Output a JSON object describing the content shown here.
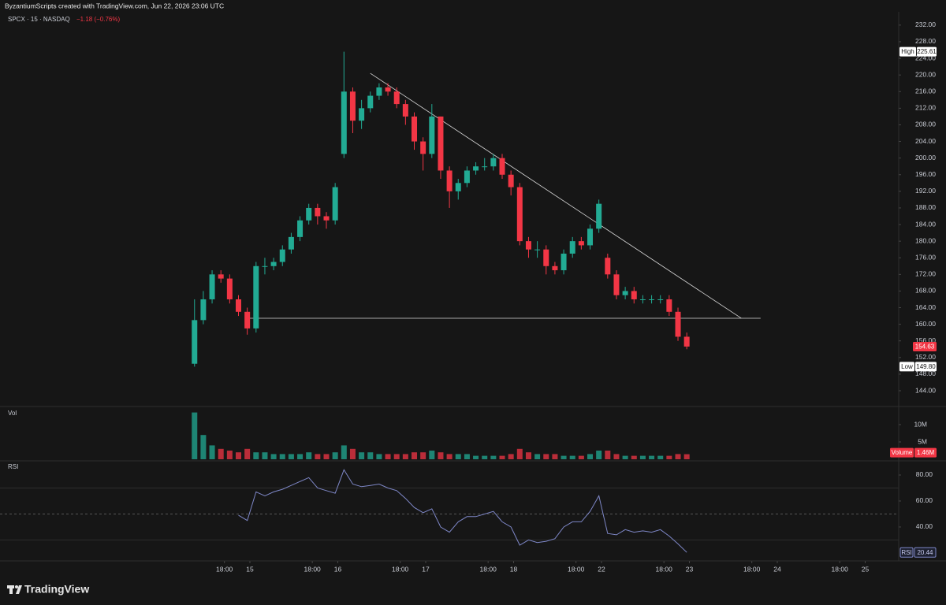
{
  "header": {
    "credit": "ByzantiumScripts created with TradingView.com, Jun 22, 2026 23:06 UTC",
    "symbol": "SPCX · 15 · NASDAQ",
    "change": "−1.18 (−0.76%)"
  },
  "footer": {
    "brand": "TradingView"
  },
  "chart_data": [
    {
      "type": "candlestick",
      "x": [
        14.37,
        14.47,
        14.57,
        14.67,
        14.77,
        14.87,
        14.97,
        15.07,
        15.17,
        15.27,
        15.37,
        15.47,
        15.57,
        15.67,
        15.77,
        15.87,
        15.97,
        16.07,
        16.17,
        16.27,
        16.37,
        16.47,
        16.57,
        16.67,
        16.77,
        16.87,
        16.97,
        17.07,
        17.17,
        17.27,
        17.37,
        17.47,
        17.57,
        17.67,
        17.77,
        17.87,
        17.97,
        18.07,
        18.17,
        18.27,
        18.37,
        18.47,
        18.57,
        18.67,
        18.77,
        18.87,
        18.97,
        19.07,
        19.17,
        19.27,
        19.37,
        19.47,
        19.57,
        19.67,
        19.77,
        19.87,
        19.97
      ],
      "open": [
        150.5,
        161,
        166,
        172,
        171,
        166,
        163,
        159,
        174,
        174,
        175,
        178,
        181,
        185,
        188,
        186,
        185,
        201,
        216,
        209,
        212,
        215,
        217,
        216,
        213,
        210,
        204,
        201,
        210,
        197,
        192,
        194,
        197,
        198,
        198,
        200,
        196,
        193,
        180,
        178,
        178,
        174,
        173,
        177,
        180,
        179,
        183,
        176,
        172,
        167,
        168,
        166,
        166,
        166,
        166,
        163,
        157
      ],
      "high": [
        166,
        168,
        173,
        173,
        172,
        167,
        164,
        175,
        176,
        176,
        179,
        182,
        186,
        189,
        189,
        187,
        194,
        225.61,
        217,
        214,
        216,
        218,
        218,
        217,
        214,
        211,
        205,
        213,
        210,
        198,
        195,
        198,
        199,
        200,
        201,
        201,
        197,
        194,
        181,
        180,
        179,
        175,
        178,
        181,
        181,
        184,
        190,
        177,
        173,
        169,
        169,
        167,
        167,
        167,
        167,
        164,
        158
      ],
      "low": [
        149.8,
        160,
        165,
        170,
        165,
        162,
        157.5,
        158,
        172,
        173,
        174,
        177,
        180,
        184,
        184,
        183,
        184,
        200,
        206,
        207,
        211,
        214,
        215,
        212,
        208,
        202,
        197,
        200,
        195,
        188,
        190,
        193,
        196,
        197,
        197,
        195,
        191,
        179,
        176,
        176,
        172,
        172,
        172,
        176,
        178,
        178,
        182,
        171,
        166,
        166,
        165,
        165,
        165,
        165,
        162,
        156,
        154
      ],
      "close": [
        161,
        166,
        172,
        171,
        166,
        163,
        159,
        174,
        174,
        175,
        178,
        181,
        185,
        188,
        186,
        185,
        193,
        216,
        209,
        212,
        215,
        217,
        216,
        213,
        210,
        204,
        201,
        210,
        197,
        192,
        194,
        197,
        198,
        198,
        200,
        196,
        193,
        180,
        178,
        178,
        174,
        173,
        177,
        180,
        179,
        183,
        189,
        172,
        167,
        168,
        166,
        166,
        166,
        166,
        163,
        157,
        154.63
      ],
      "up_color": "#22ab94",
      "down_color": "#f23645",
      "xlim": [
        12.157,
        22.381
      ],
      "xticks": [
        {
          "value": 14.71,
          "label": "18:00"
        },
        15,
        {
          "value": 15.71,
          "label": "18:00"
        },
        16,
        {
          "value": 16.71,
          "label": "18:00"
        },
        17,
        {
          "value": 17.71,
          "label": "18:00"
        },
        18,
        {
          "value": 18.71,
          "label": "18:00"
        },
        {
          "value": 19,
          "label": "22"
        },
        {
          "value": 19.71,
          "label": "18:00"
        },
        {
          "value": 20,
          "label": "23"
        },
        {
          "value": 20.71,
          "label": "18:00"
        },
        {
          "value": 21,
          "label": "24"
        },
        {
          "value": 21.71,
          "label": "18:00"
        },
        {
          "value": 22,
          "label": "25"
        }
      ],
      "ylim": [
        140.4,
        235.2
      ],
      "yticks": [
        {
          "value": 144,
          "label": "144.00"
        },
        {
          "value": 148,
          "label": "148.00"
        },
        {
          "value": 152,
          "label": "152.00"
        },
        {
          "value": 156,
          "label": "156.00"
        },
        {
          "value": 160,
          "label": "160.00"
        },
        {
          "value": 164,
          "label": "164.00"
        },
        {
          "value": 168,
          "label": "168.00"
        },
        {
          "value": 172,
          "label": "172.00"
        },
        {
          "value": 176,
          "label": "176.00"
        },
        {
          "value": 180,
          "label": "180.00"
        },
        {
          "value": 184,
          "label": "184.00"
        },
        {
          "value": 188,
          "label": "188.00"
        },
        {
          "value": 192,
          "label": "192.00"
        },
        {
          "value": 196,
          "label": "196.00"
        },
        {
          "value": 200,
          "label": "200.00"
        },
        {
          "value": 204,
          "label": "204.00"
        },
        {
          "value": 208,
          "label": "208.00"
        },
        {
          "value": 212,
          "label": "212.00"
        },
        {
          "value": 216,
          "label": "216.00"
        },
        {
          "value": 220,
          "label": "220.00"
        },
        {
          "value": 224,
          "label": "224.00"
        },
        {
          "value": 228,
          "label": "228.00"
        },
        {
          "value": 232,
          "label": "232.00"
        }
      ],
      "high_badge": {
        "label": "High",
        "value": 225.61
      },
      "low_badge": {
        "label": "Low",
        "value": 149.8,
        "value_label": "149.80"
      },
      "last": 154.63,
      "lines": [
        {
          "x": [
            14.97,
            20.81
          ],
          "y": [
            161.45,
            161.45
          ]
        },
        {
          "x": [
            16.37,
            20.59
          ],
          "y": [
            220.4,
            161.45
          ]
        }
      ]
    },
    {
      "type": "bar",
      "title": "Vol",
      "x": [
        14.37,
        14.47,
        14.57,
        14.67,
        14.77,
        14.87,
        14.97,
        15.07,
        15.17,
        15.27,
        15.37,
        15.47,
        15.57,
        15.67,
        15.77,
        15.87,
        15.97,
        16.07,
        16.17,
        16.27,
        16.37,
        16.47,
        16.57,
        16.67,
        16.77,
        16.87,
        16.97,
        17.07,
        17.17,
        17.27,
        17.37,
        17.47,
        17.57,
        17.67,
        17.77,
        17.87,
        17.97,
        18.07,
        18.17,
        18.27,
        18.37,
        18.47,
        18.57,
        18.67,
        18.77,
        18.87,
        18.97,
        19.07,
        19.17,
        19.27,
        19.37,
        19.47,
        19.57,
        19.67,
        19.77,
        19.87,
        19.97
      ],
      "values": [
        13.5,
        7,
        4,
        3,
        2.5,
        2,
        3,
        2,
        2,
        1.5,
        1.5,
        1.5,
        1.5,
        2,
        1.5,
        1.5,
        2,
        4,
        3,
        2,
        2,
        1.5,
        1.5,
        1.5,
        1.5,
        2,
        2,
        2.5,
        2,
        1.5,
        1.5,
        1.5,
        1,
        1,
        1,
        1,
        1.5,
        3,
        2,
        1.5,
        1.5,
        1.5,
        1,
        1,
        1,
        1.5,
        2.5,
        2.5,
        1.5,
        1,
        1,
        1,
        1,
        1,
        1,
        1.5,
        1.46
      ],
      "ylim": [
        0,
        15
      ],
      "yticks": [
        {
          "value": 5,
          "label": "5M"
        },
        {
          "value": 10,
          "label": "10M"
        }
      ],
      "badge": {
        "label": "Volume",
        "value": 1.46,
        "value_label": "1.46M"
      }
    },
    {
      "type": "line",
      "title": "RSI",
      "color": "#7e87c7",
      "x": [
        14.37,
        14.47,
        14.57,
        14.67,
        14.77,
        14.87,
        14.97,
        15.07,
        15.17,
        15.27,
        15.37,
        15.47,
        15.57,
        15.67,
        15.77,
        15.87,
        15.97,
        16.07,
        16.17,
        16.27,
        16.37,
        16.47,
        16.57,
        16.67,
        16.77,
        16.87,
        16.97,
        17.07,
        17.17,
        17.27,
        17.37,
        17.47,
        17.57,
        17.67,
        17.77,
        17.87,
        17.97,
        18.07,
        18.17,
        18.27,
        18.37,
        18.47,
        18.57,
        18.67,
        18.77,
        18.87,
        18.97,
        19.07,
        19.17,
        19.27,
        19.37,
        19.47,
        19.57,
        19.67,
        19.77,
        19.87,
        19.97
      ],
      "values": [
        null,
        null,
        null,
        null,
        null,
        49,
        45,
        67,
        64,
        67,
        69,
        72,
        75,
        78,
        70,
        68,
        66,
        84,
        73,
        71,
        72,
        73,
        70,
        68,
        62,
        55,
        51,
        54,
        40,
        36,
        44,
        48,
        48,
        50,
        52,
        44,
        40,
        26,
        30,
        28,
        29,
        31,
        40,
        44,
        44,
        52,
        64,
        35,
        34,
        38,
        36,
        37,
        36,
        38,
        33,
        27,
        20.44
      ],
      "ylim": [
        13.9,
        89.7
      ],
      "yticks": [
        {
          "value": 40,
          "label": "40.00"
        },
        {
          "value": 60,
          "label": "60.00"
        },
        {
          "value": 80,
          "label": "80.00"
        }
      ],
      "band": [
        30,
        70
      ],
      "midline": 50,
      "badge": {
        "label": "RSI",
        "value": 20.44
      }
    }
  ]
}
